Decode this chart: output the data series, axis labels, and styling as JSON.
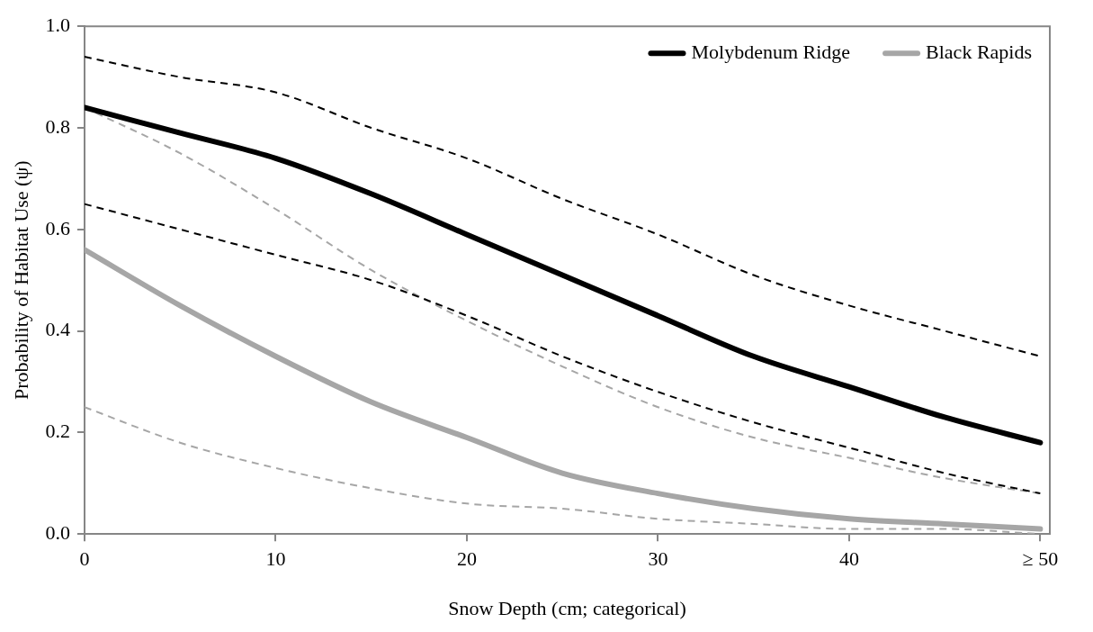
{
  "chart_data": {
    "type": "line",
    "xlabel": "Snow Depth (cm; categorical)",
    "ylabel": "Probability of Habitat Use (ψ)",
    "x": [
      0,
      5,
      10,
      15,
      20,
      25,
      30,
      35,
      40,
      45,
      50
    ],
    "series": [
      {
        "name": "Molybdenum Ridge",
        "color": "#000000",
        "values": [
          0.84,
          0.79,
          0.74,
          0.67,
          0.59,
          0.51,
          0.43,
          0.35,
          0.29,
          0.23,
          0.18
        ]
      },
      {
        "name": "Black Rapids",
        "color": "#a6a6a6",
        "values": [
          0.56,
          0.45,
          0.35,
          0.26,
          0.19,
          0.12,
          0.08,
          0.05,
          0.03,
          0.02,
          0.01
        ]
      },
      {
        "color": "#000000",
        "line_style": "dashed",
        "values": [
          0.94,
          0.9,
          0.87,
          0.8,
          0.74,
          0.66,
          0.59,
          0.51,
          0.45,
          0.4,
          0.35
        ]
      },
      {
        "color": "#000000",
        "line_style": "dashed",
        "values": [
          0.65,
          0.6,
          0.55,
          0.5,
          0.43,
          0.35,
          0.28,
          0.22,
          0.17,
          0.12,
          0.08
        ]
      },
      {
        "color": "#a6a6a6",
        "line_style": "dashed",
        "values": [
          0.84,
          0.75,
          0.64,
          0.52,
          0.42,
          0.33,
          0.25,
          0.19,
          0.15,
          0.11,
          0.08
        ]
      },
      {
        "color": "#a6a6a6",
        "line_style": "dashed",
        "values": [
          0.25,
          0.18,
          0.13,
          0.09,
          0.06,
          0.05,
          0.03,
          0.02,
          0.01,
          0.01,
          0.0
        ]
      }
    ],
    "xlim": [
      0,
      50.5
    ],
    "xticks": [
      0,
      10,
      20,
      30,
      40,
      {
        "value": 50,
        "label": "≥ 50"
      }
    ],
    "ylim": [
      0,
      1
    ],
    "yticks": [
      {
        "value": 0,
        "label": "0.0"
      },
      {
        "value": 0.2,
        "label": "0.2"
      },
      {
        "value": 0.4,
        "label": "0.4"
      },
      {
        "value": 0.6,
        "label": "0.6"
      },
      {
        "value": 0.8,
        "label": "0.8"
      },
      {
        "value": 1,
        "label": "1.0"
      }
    ],
    "grid": false,
    "legend": "top right",
    "marker": "none",
    "line_style": "solid"
  }
}
